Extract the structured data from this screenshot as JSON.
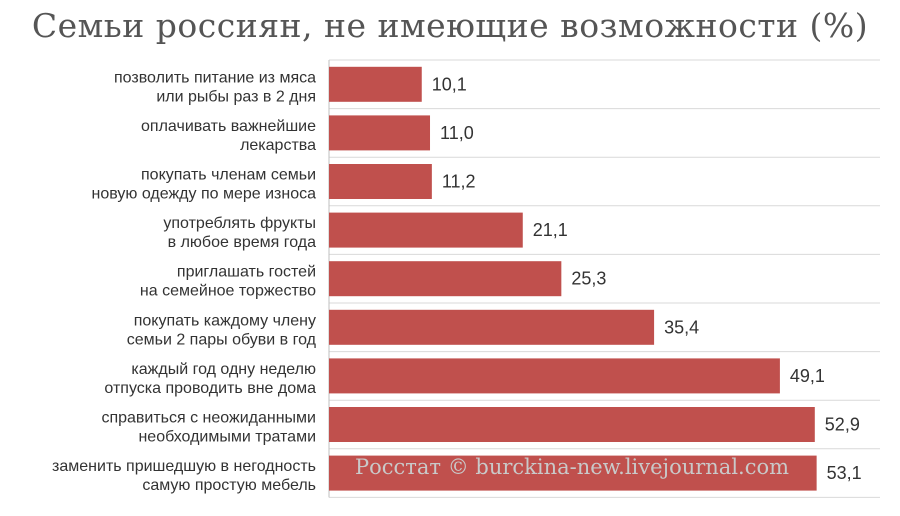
{
  "chart_data": {
    "type": "bar",
    "orientation": "horizontal",
    "title": "Семьи россиян, не имеющие возможности (%)",
    "categories": [
      [
        "позволить питание из мяса",
        "или рыбы раз в 2 дня"
      ],
      [
        "оплачивать важнейшие",
        "лекарства"
      ],
      [
        "покупать членам семьи",
        "новую одежду по мере износа"
      ],
      [
        "употреблять фрукты",
        "в любое время года"
      ],
      [
        "приглашать гостей",
        "на семейное торжество"
      ],
      [
        "покупать каждому члену",
        "семьи 2 пары обуви в год"
      ],
      [
        "каждый год одну неделю",
        "отпуска проводить вне дома"
      ],
      [
        "справиться с неожиданными",
        "необходимыми тратами"
      ],
      [
        "заменить пришедшую в негодность",
        "самую простую мебель"
      ]
    ],
    "values": [
      10.1,
      11.0,
      11.2,
      21.1,
      25.3,
      35.4,
      49.1,
      52.9,
      53.1
    ],
    "value_labels": [
      "10,1",
      "11,0",
      "11,2",
      "21,1",
      "25,3",
      "35,4",
      "49,1",
      "52,9",
      "53,1"
    ],
    "xlim": [
      0,
      60
    ],
    "bar_color": "#c0504d",
    "grid": true,
    "watermark": "Росстат © burckina-new.livejournal.com"
  }
}
